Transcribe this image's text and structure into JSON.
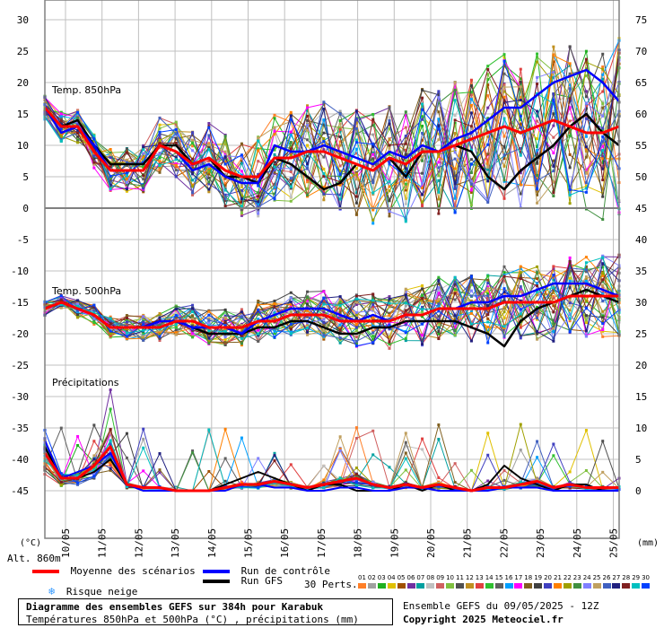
{
  "chart_data": {
    "type": "line",
    "title": "Diagramme des ensembles GEFS sur 384h pour Karabuk",
    "subtitle": "Températures 850hPa et 500hPa (°C) , précipitations (mm)",
    "left_axis": {
      "label": "(°C)",
      "ticks": [
        "30",
        "25",
        "20",
        "15",
        "10",
        "5",
        "0",
        "-5",
        "-10",
        "-15",
        "-20",
        "-25",
        "-30",
        "-35",
        "-40",
        "-45"
      ]
    },
    "right_axis": {
      "label": "(mm)",
      "ticks": [
        "75",
        "70",
        "65",
        "60",
        "55",
        "50",
        "45",
        "40",
        "35",
        "30",
        "25",
        "20",
        "15",
        "10",
        "5",
        "0"
      ]
    },
    "x_ticks": [
      "10/05",
      "11/05",
      "12/05",
      "13/05",
      "14/05",
      "15/05",
      "16/05",
      "17/05",
      "18/05",
      "19/05",
      "20/05",
      "21/05",
      "22/05",
      "23/05",
      "24/05",
      "25/05"
    ],
    "altitude": "Alt. 860m",
    "panels": {
      "t850": "Temp. 850hPa",
      "t500": "Temp. 500hPa",
      "precip": "Précipitations"
    },
    "series_850": {
      "mean": [
        16,
        13,
        13,
        9,
        6,
        6,
        6,
        10,
        9,
        7,
        8,
        6,
        5,
        5,
        8,
        8,
        9,
        9,
        8,
        7,
        6,
        8,
        7,
        9,
        9,
        10,
        11,
        12,
        13,
        12,
        13,
        14,
        13,
        12,
        12,
        13
      ],
      "control": [
        16,
        12,
        13,
        10,
        6,
        6,
        6,
        10,
        9,
        6,
        7,
        5,
        4,
        4,
        10,
        9,
        9,
        10,
        9,
        8,
        7,
        9,
        8,
        10,
        9,
        11,
        12,
        14,
        16,
        16,
        18,
        20,
        21,
        22,
        20,
        17
      ],
      "gfs": [
        16,
        13,
        14,
        10,
        7,
        7,
        7,
        10,
        10,
        7,
        8,
        5,
        5,
        4,
        8,
        7,
        5,
        3,
        4,
        7,
        6,
        8,
        5,
        9,
        9,
        10,
        9,
        5,
        3,
        6,
        8,
        10,
        13,
        15,
        12,
        10
      ]
    },
    "series_500": {
      "mean": [
        -16,
        -15,
        -16,
        -17,
        -19,
        -19,
        -19,
        -19,
        -18,
        -18,
        -19,
        -19,
        -19,
        -18,
        -18,
        -17,
        -17,
        -17,
        -18,
        -18,
        -18,
        -18,
        -17,
        -17,
        -16,
        -16,
        -16,
        -16,
        -15,
        -15,
        -15,
        -15,
        -14,
        -14,
        -14,
        -14
      ],
      "control": [
        -16,
        -15,
        -16,
        -17,
        -19,
        -19,
        -19,
        -18,
        -18,
        -19,
        -19,
        -19,
        -20,
        -18,
        -17,
        -16,
        -16,
        -16,
        -17,
        -18,
        -17,
        -18,
        -17,
        -17,
        -16,
        -16,
        -15,
        -15,
        -14,
        -14,
        -13,
        -12,
        -12,
        -12,
        -13,
        -14
      ],
      "gfs": [
        -16,
        -15,
        -16,
        -17,
        -19,
        -19,
        -19,
        -18,
        -18,
        -19,
        -20,
        -20,
        -20,
        -19,
        -19,
        -18,
        -18,
        -19,
        -20,
        -20,
        -19,
        -19,
        -18,
        -18,
        -18,
        -18,
        -19,
        -20,
        -22,
        -18,
        -16,
        -15,
        -14,
        -13,
        -14,
        -15
      ]
    },
    "series_precip": {
      "mean": [
        6,
        2,
        2,
        4,
        7,
        1,
        0.5,
        0.5,
        0,
        0,
        0,
        0.5,
        1,
        1,
        1.5,
        1,
        0.5,
        1,
        1.5,
        2,
        1,
        0.5,
        1,
        0.5,
        1,
        0.5,
        0,
        0.5,
        0.5,
        1,
        1.5,
        0.5,
        1,
        0.5,
        0.5,
        0.5
      ],
      "control": [
        8,
        2,
        3,
        4,
        6,
        1,
        0,
        0,
        0,
        0,
        0,
        0,
        1,
        1,
        0.5,
        0.5,
        0,
        0,
        0.5,
        0.5,
        0,
        0,
        0.5,
        0.5,
        0,
        0,
        0,
        0,
        0.5,
        0.5,
        0.5,
        0,
        0,
        0,
        0,
        0
      ],
      "gfs": [
        7,
        2,
        2,
        3,
        5,
        1,
        0,
        0,
        0,
        0,
        0,
        1,
        2,
        3,
        2,
        1,
        0,
        1,
        1,
        0,
        0,
        0,
        1,
        0,
        1,
        0,
        0,
        1,
        4,
        2,
        1,
        0,
        1,
        1,
        0,
        0
      ]
    },
    "legend": {
      "mean": "Moyenne des scénarios",
      "control": "Run de contrôle",
      "gfs": "Run GFS",
      "snow": "Risque neige",
      "perts": "30 Perts."
    },
    "pert_numbers": [
      "01",
      "02",
      "03",
      "04",
      "05",
      "06",
      "07",
      "08",
      "09",
      "10",
      "11",
      "12",
      "13",
      "14",
      "15",
      "16",
      "17",
      "18",
      "19",
      "20",
      "21",
      "22",
      "23",
      "24",
      "25",
      "26",
      "27",
      "28",
      "29",
      "30"
    ],
    "pert_colors": [
      "#ff7f27",
      "#a0a0a0",
      "#20b020",
      "#e0c000",
      "#a05000",
      "#7030a0",
      "#00a0a0",
      "#c0c0c0",
      "#d06060",
      "#80c040",
      "#505050",
      "#c09020",
      "#e04040",
      "#30c030",
      "#606060",
      "#00a0ff",
      "#ff00ff",
      "#806020",
      "#404040",
      "#4040c0",
      "#ff8000",
      "#a0a000",
      "#409040",
      "#8080ff",
      "#c0a060",
      "#4060c0",
      "#202080",
      "#802020",
      "#00c0c0",
      "#0040ff"
    ]
  },
  "footer": {
    "title": "Diagramme des ensembles GEFS sur 384h pour Karabuk",
    "subtitle": "Températures 850hPa et 500hPa (°C) , précipitations (mm)",
    "run": "Ensemble GEFS du 09/05/2025 - 12Z",
    "copyright": "Copyright 2025 Meteociel.fr"
  },
  "colors": {
    "mean": "#ff0000",
    "control": "#0000ff",
    "gfs": "#000000",
    "grid": "#c0c0c0",
    "snow": "#3399ff"
  }
}
